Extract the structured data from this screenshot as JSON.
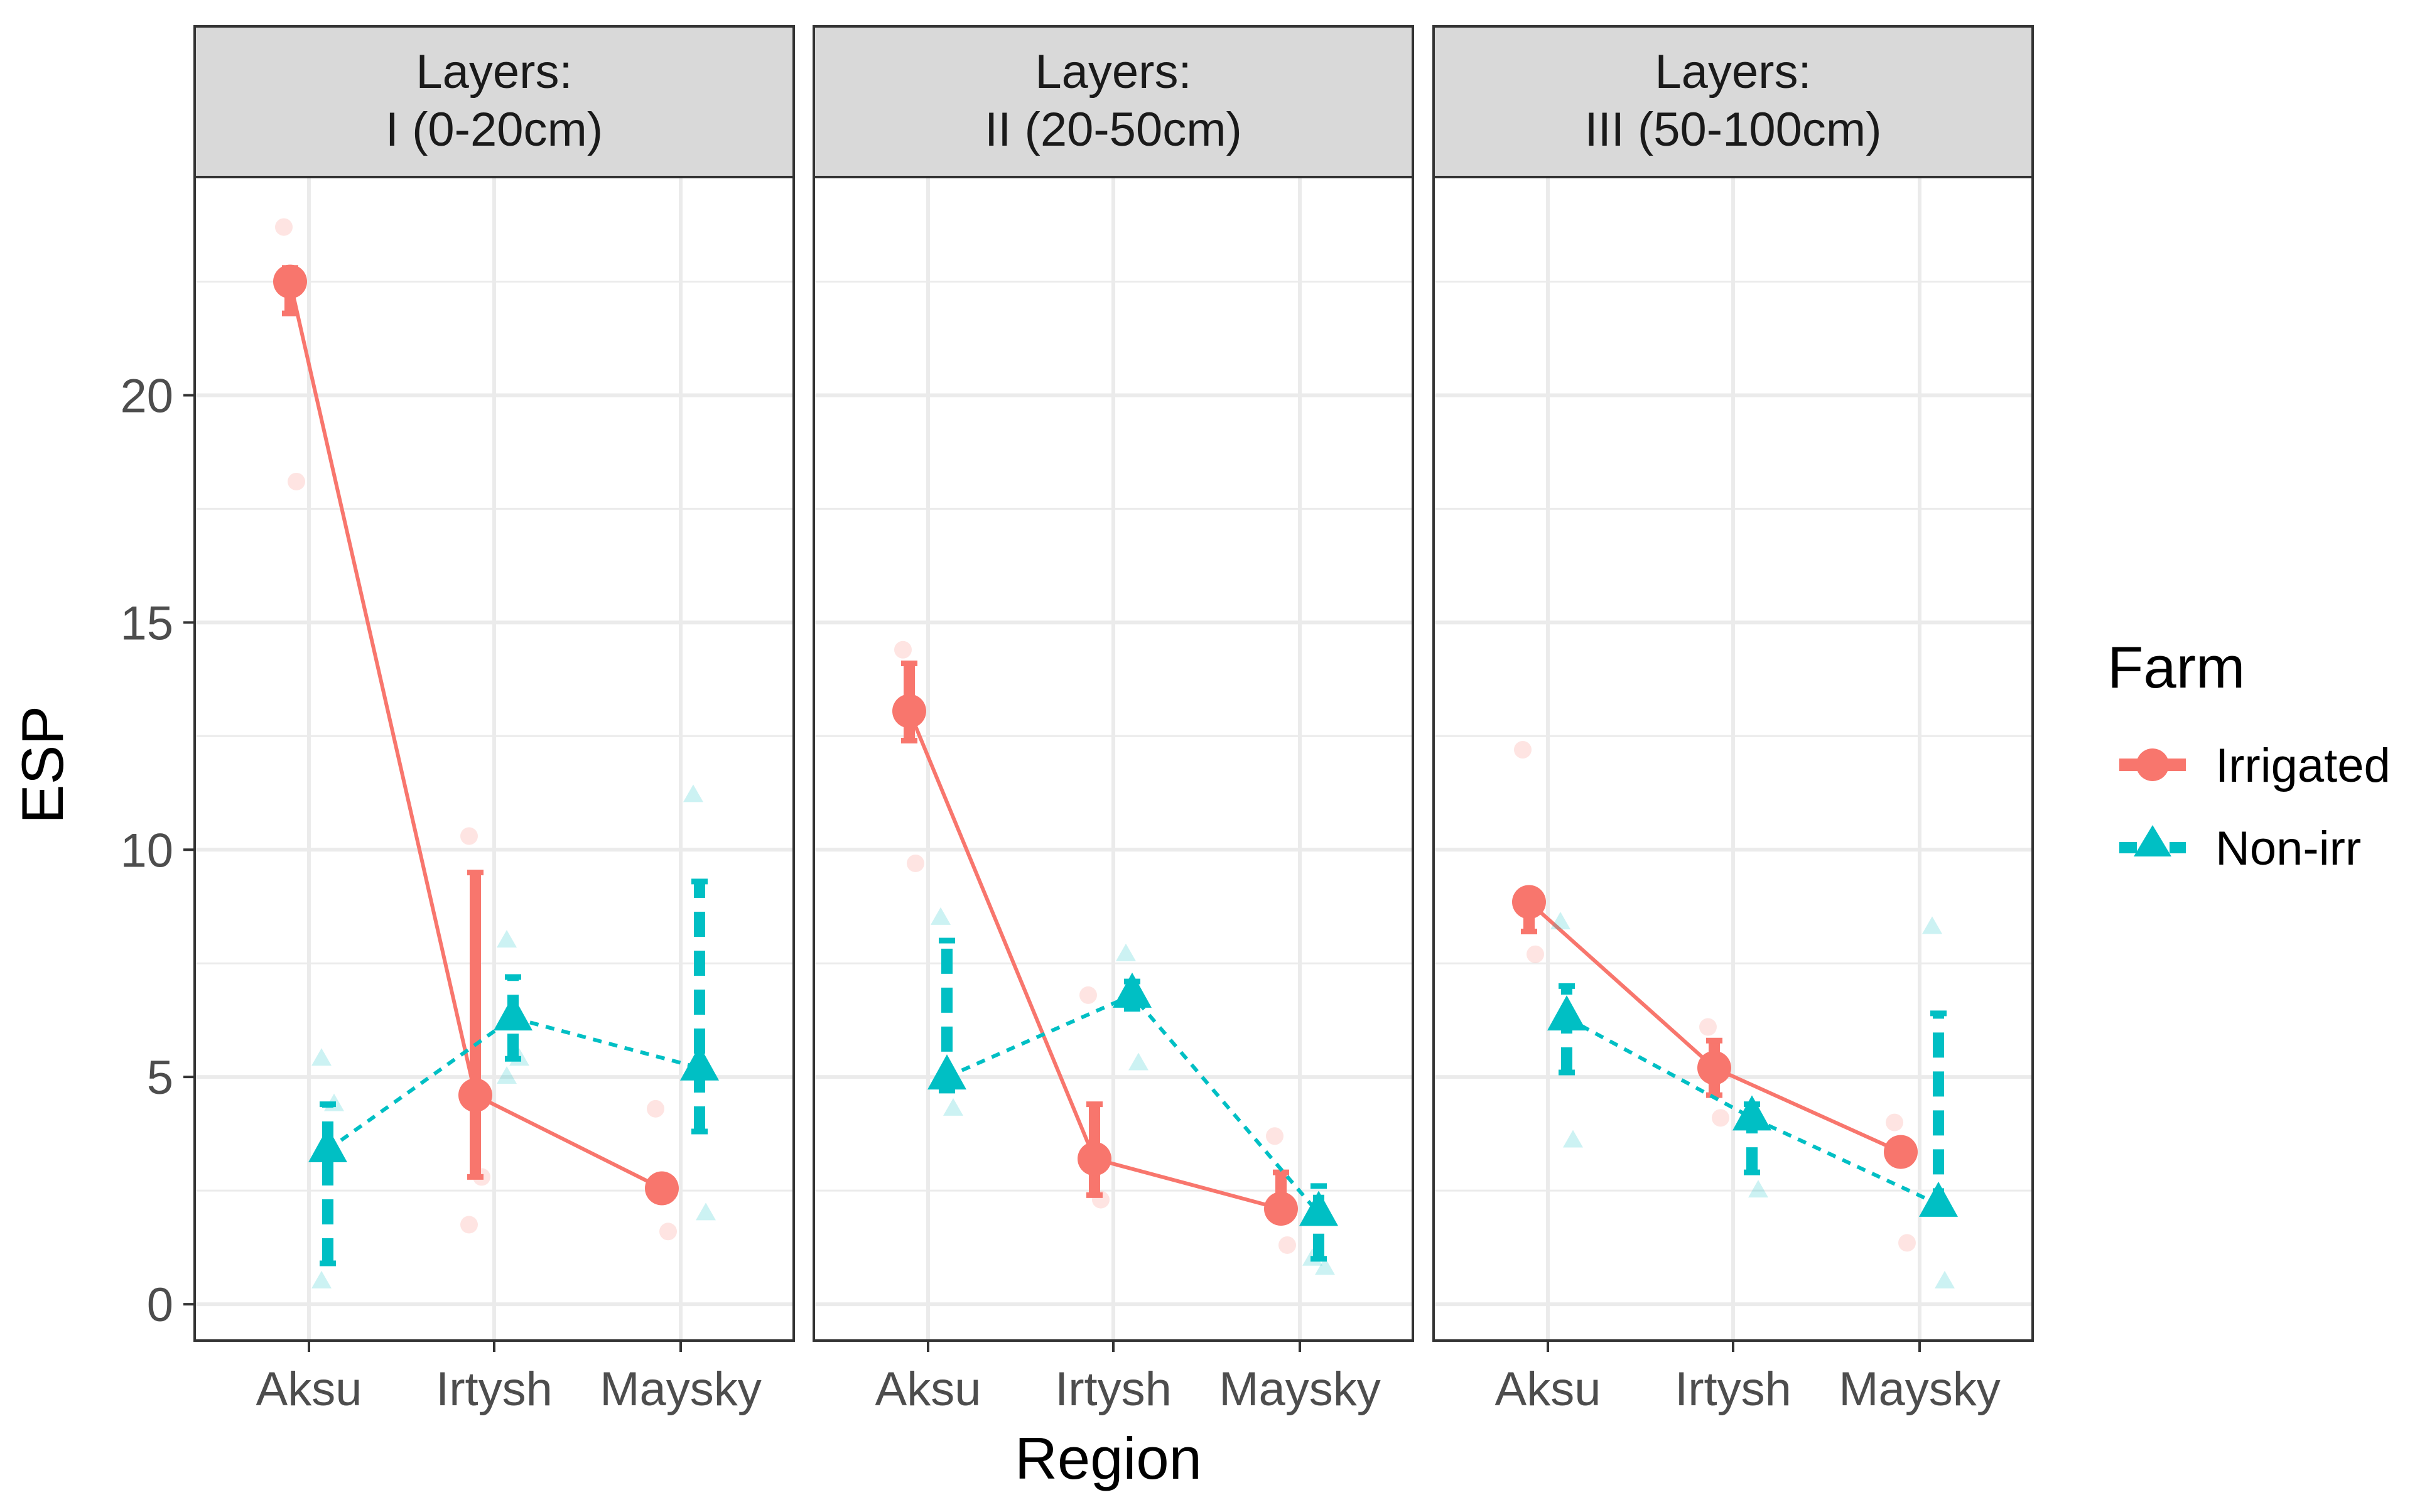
{
  "chart_data": {
    "type": "point-line-faceted",
    "ylabel": "ESP",
    "xlabel": "Region",
    "categories": [
      "Aksu",
      "Irtysh",
      "Maysky"
    ],
    "ylim": [
      -0.8,
      24.8
    ],
    "yticks": [
      0,
      5,
      10,
      15,
      20
    ],
    "grid": true,
    "legend": {
      "title": "Farm",
      "position": "right",
      "entries": [
        "Irrigated",
        "Non-irr"
      ]
    },
    "colors": {
      "Irrigated": "#f8766d",
      "Non-irr": "#00bfc4",
      "strip_bg": "#d9d9d9",
      "grid": "#ebebeb"
    },
    "facets": [
      {
        "label_line1": "Layers:",
        "label_line2": "I (0-20cm)",
        "series": [
          {
            "name": "Irrigated",
            "means": [
              22.5,
              4.6,
              2.55
            ],
            "err_low": [
              21.8,
              2.8,
              2.4
            ],
            "err_high": [
              22.8,
              9.5,
              2.7
            ],
            "raw": [
              [
                23.7,
                18.1
              ],
              [
                10.3,
                2.8,
                1.75
              ],
              [
                4.3,
                1.6
              ]
            ]
          },
          {
            "name": "Non-irr",
            "means": [
              3.4,
              6.3,
              5.2
            ],
            "err_low": [
              0.9,
              5.4,
              3.8
            ],
            "err_high": [
              4.4,
              7.2,
              9.3
            ],
            "raw": [
              [
                5.4,
                4.4,
                0.5
              ],
              [
                8.0,
                5.4,
                5.0
              ],
              [
                11.2,
                2.0
              ]
            ]
          }
        ]
      },
      {
        "label_line1": "Layers:",
        "label_line2": "II (20-50cm)",
        "series": [
          {
            "name": "Irrigated",
            "means": [
              13.05,
              3.2,
              2.1
            ],
            "err_low": [
              12.4,
              2.4,
              2.0
            ],
            "err_high": [
              14.1,
              4.4,
              2.9
            ],
            "raw": [
              [
                14.4,
                9.7
              ],
              [
                6.8,
                2.3
              ],
              [
                3.7,
                1.3
              ]
            ]
          },
          {
            "name": "Non-irr",
            "means": [
              5.0,
              6.8,
              2.0
            ],
            "err_low": [
              4.7,
              6.5,
              1.0
            ],
            "err_high": [
              8.0,
              7.1,
              2.6
            ],
            "raw": [
              [
                8.5,
                4.3
              ],
              [
                7.7,
                5.3
              ],
              [
                1.0,
                0.8
              ]
            ]
          }
        ]
      },
      {
        "label_line1": "Layers:",
        "label_line2": "III (50-100cm)",
        "series": [
          {
            "name": "Irrigated",
            "means": [
              8.85,
              5.2,
              3.35
            ],
            "err_low": [
              8.2,
              4.6,
              3.1
            ],
            "err_high": [
              9.1,
              5.8,
              3.6
            ],
            "raw": [
              [
                12.2,
                7.7
              ],
              [
                6.1,
                4.1
              ],
              [
                4.0,
                1.35
              ]
            ]
          },
          {
            "name": "Non-irr",
            "means": [
              6.3,
              4.1,
              2.2
            ],
            "err_low": [
              5.1,
              2.9,
              2.0
            ],
            "err_high": [
              7.0,
              4.4,
              6.4
            ],
            "raw": [
              [
                8.4,
                3.6
              ],
              [
                4.0,
                2.5
              ],
              [
                8.3,
                0.5
              ]
            ]
          }
        ]
      }
    ]
  }
}
